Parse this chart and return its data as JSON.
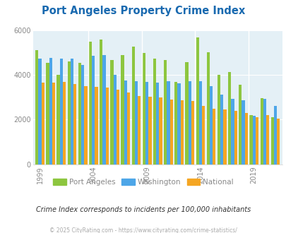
{
  "title": "Port Angeles Property Crime Index",
  "subtitle": "Crime Index corresponds to incidents per 100,000 inhabitants",
  "footer": "© 2025 CityRating.com - https://www.cityrating.com/crime-statistics/",
  "years": [
    1999,
    2000,
    2001,
    2002,
    2003,
    2004,
    2005,
    2006,
    2007,
    2008,
    2009,
    2010,
    2011,
    2012,
    2013,
    2014,
    2015,
    2016,
    2017,
    2018,
    2019,
    2020,
    2021
  ],
  "port_angeles": [
    5100,
    4550,
    4020,
    4620,
    4550,
    5490,
    5590,
    4680,
    4900,
    5270,
    5000,
    4720,
    4660,
    3680,
    4560,
    5680,
    5020,
    3990,
    4130,
    3560,
    2190,
    2960,
    2100
  ],
  "washington": [
    4720,
    4760,
    4720,
    4720,
    4450,
    4860,
    4900,
    4020,
    3750,
    3720,
    3680,
    3660,
    3710,
    3640,
    3720,
    3720,
    3510,
    3120,
    2940,
    2870,
    2180,
    2940,
    2600
  ],
  "national": [
    3650,
    3650,
    3680,
    3600,
    3490,
    3480,
    3430,
    3330,
    3220,
    3060,
    3020,
    2990,
    2910,
    2860,
    2820,
    2600,
    2500,
    2460,
    2380,
    2310,
    2100,
    2190,
    2050
  ],
  "port_angeles_color": "#8dc63f",
  "washington_color": "#4da6e8",
  "national_color": "#f5a623",
  "bg_color": "#e4f0f6",
  "title_color": "#1a6ab0",
  "text_color": "#888888",
  "subtitle_color": "#333333",
  "footer_color": "#aaaaaa",
  "ylim": [
    0,
    6000
  ],
  "yticks": [
    0,
    2000,
    4000,
    6000
  ],
  "tick_years": [
    1999,
    2004,
    2009,
    2014,
    2019
  ]
}
